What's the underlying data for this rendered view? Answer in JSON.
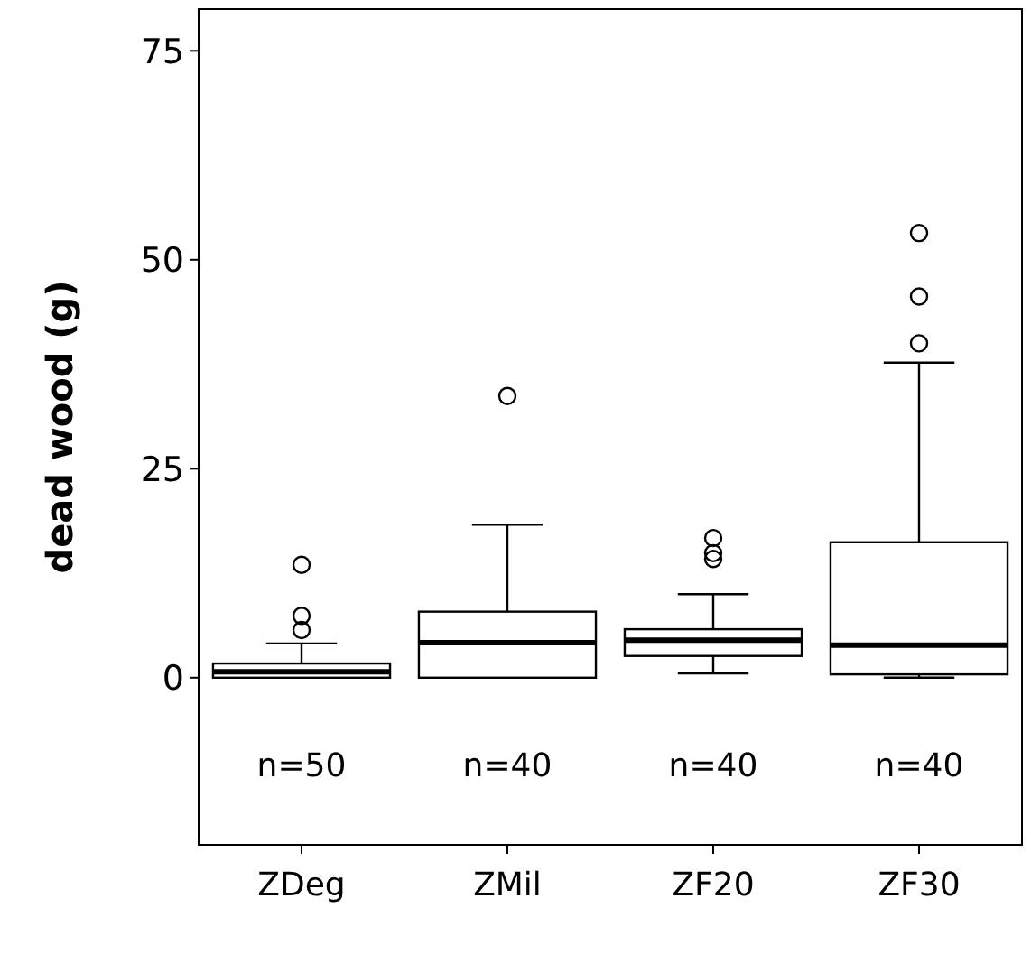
{
  "chart_data": {
    "type": "box",
    "ylabel": "dead wood (g)",
    "categories": [
      "ZDeg",
      "ZMil",
      "ZF20",
      "ZF30"
    ],
    "ylim": [
      -20,
      80
    ],
    "yticks": [
      0,
      25,
      50,
      75
    ],
    "boxes": [
      {
        "low": 0,
        "q1": 0,
        "median": 0.7,
        "q3": 1.7,
        "high": 4.1,
        "outliers": [
          5.7,
          7.4,
          13.5
        ]
      },
      {
        "low": 0,
        "q1": 0,
        "median": 4.2,
        "q3": 7.9,
        "high": 18.3,
        "outliers": [
          33.7
        ]
      },
      {
        "low": 0.5,
        "q1": 2.6,
        "median": 4.5,
        "q3": 5.8,
        "high": 10.0,
        "outliers": [
          14.2,
          14.9,
          16.7
        ]
      },
      {
        "low": 0,
        "q1": 0.4,
        "median": 3.9,
        "q3": 16.2,
        "high": 37.7,
        "outliers": [
          40.0,
          45.6,
          53.2
        ]
      }
    ],
    "annotations": [
      "n=50",
      "n=40",
      "n=40",
      "n=40"
    ]
  }
}
